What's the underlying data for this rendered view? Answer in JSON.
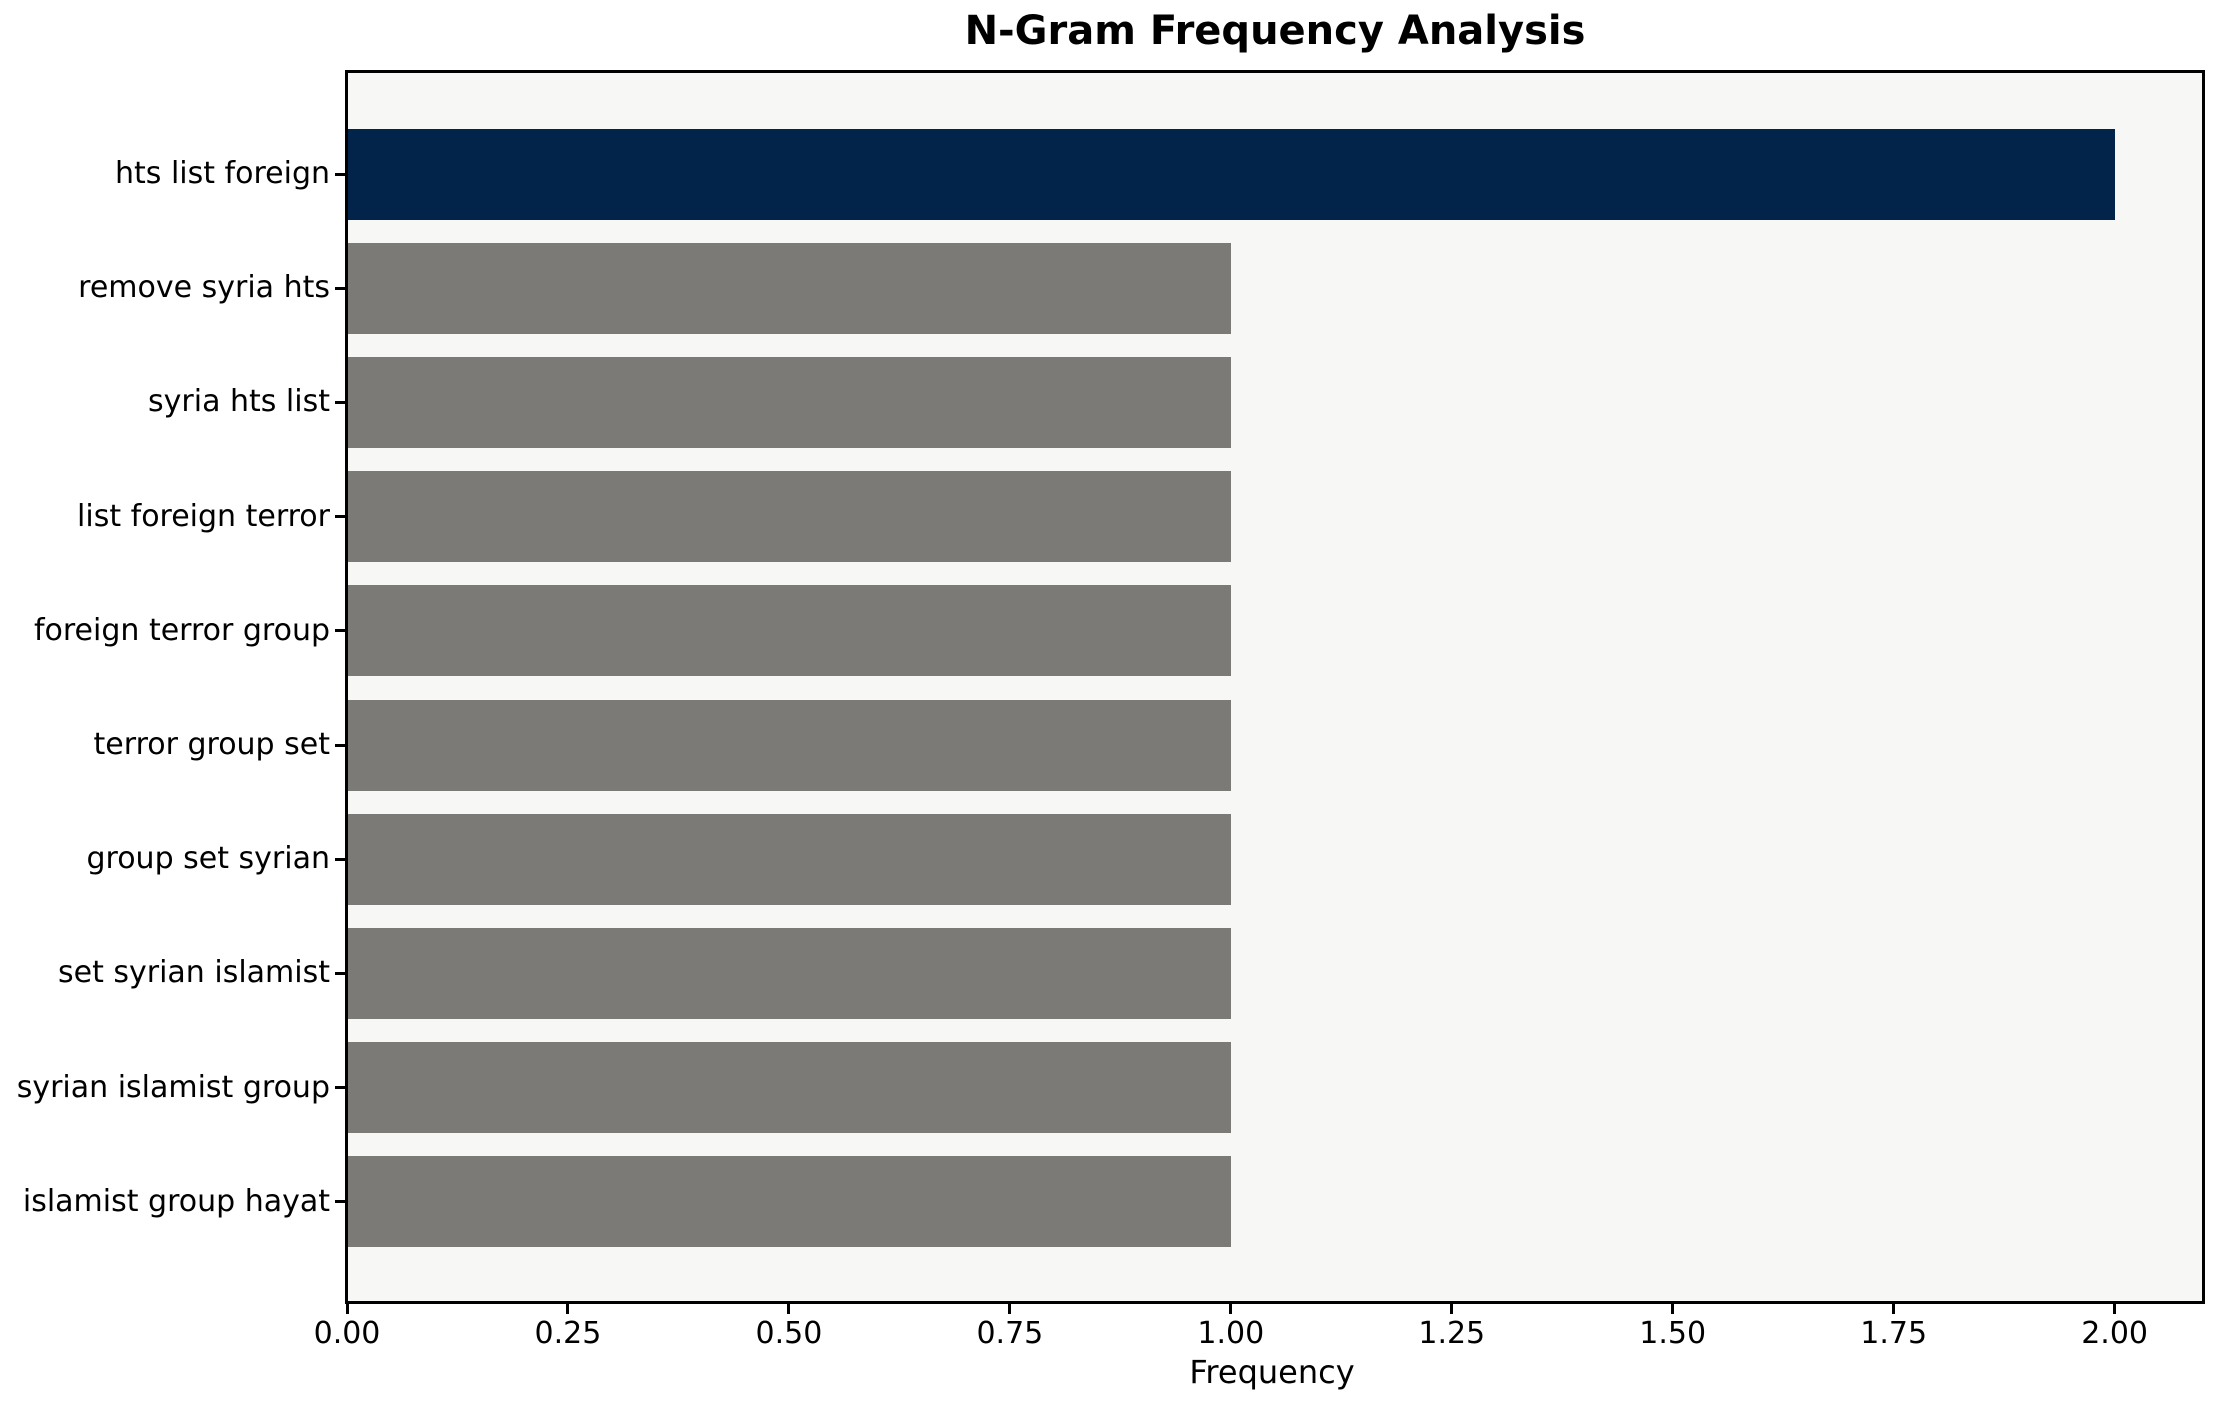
{
  "chart_data": {
    "type": "bar",
    "orientation": "horizontal",
    "title": "N-Gram Frequency Analysis",
    "xlabel": "Frequency",
    "ylabel": "",
    "categories": [
      "hts list foreign",
      "remove syria hts",
      "syria hts list",
      "list foreign terror",
      "foreign terror group",
      "terror group set",
      "group set syrian",
      "set syrian islamist",
      "syrian islamist group",
      "islamist group hayat"
    ],
    "values": [
      2,
      1,
      1,
      1,
      1,
      1,
      1,
      1,
      1,
      1
    ],
    "xlim": [
      0,
      2.1
    ],
    "xticks": [
      0,
      0.25,
      0.5,
      0.75,
      1.0,
      1.25,
      1.5,
      1.75,
      2.0
    ],
    "xtick_labels": [
      "0.00",
      "0.25",
      "0.50",
      "0.75",
      "1.00",
      "1.25",
      "1.50",
      "1.75",
      "2.00"
    ],
    "grid": false,
    "legend": null,
    "bar_height_frac": 0.8,
    "colors": {
      "highlight_bar": "#02244b",
      "default_bar": "#7b7a77",
      "plot_bg": "#f7f7f6",
      "figure_bg": "#ffffff",
      "spine": "#000000",
      "text": "#000000"
    }
  }
}
